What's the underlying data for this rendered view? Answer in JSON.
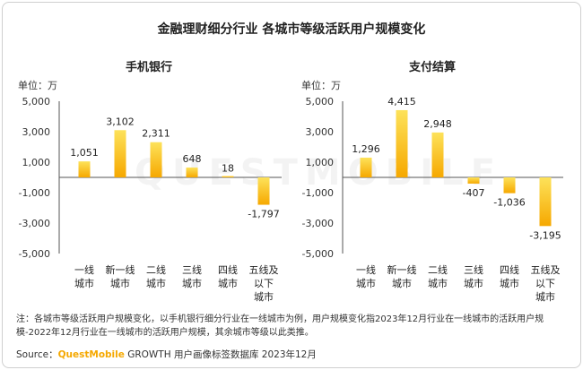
{
  "title": "金融理财细分行业 各城市等级活跃用户规模变化",
  "watermark": "QUESTMOBILE",
  "colors": {
    "bar_top": "#fde25a",
    "bar_bottom": "#f6a800",
    "axis": "#555555"
  },
  "chart_data": [
    {
      "type": "bar",
      "title": "手机银行",
      "unit": "单位：万",
      "categories": [
        [
          "一线",
          "城市"
        ],
        [
          "新一线",
          "城市"
        ],
        [
          "二线",
          "城市"
        ],
        [
          "三线",
          "城市"
        ],
        [
          "四线",
          "城市"
        ],
        [
          "五线及",
          "以下",
          "城市"
        ]
      ],
      "values": [
        1051,
        3102,
        2311,
        648,
        18,
        -1797
      ],
      "value_labels": [
        "1,051",
        "3,102",
        "2,311",
        "648",
        "18",
        "-1,797"
      ],
      "yticks": [
        5000,
        3000,
        1000,
        -1000,
        -3000,
        -5000
      ],
      "ytick_labels": [
        "5,000",
        "3,000",
        "1,000",
        "-1,000",
        "-3,000",
        "-5,000"
      ],
      "ylim": [
        -5000,
        5000
      ]
    },
    {
      "type": "bar",
      "title": "支付结算",
      "unit": "单位：万",
      "categories": [
        [
          "一线",
          "城市"
        ],
        [
          "新一线",
          "城市"
        ],
        [
          "二线",
          "城市"
        ],
        [
          "三线",
          "城市"
        ],
        [
          "四线",
          "城市"
        ],
        [
          "五线及",
          "以下",
          "城市"
        ]
      ],
      "values": [
        1296,
        4415,
        2948,
        -407,
        -1036,
        -3195
      ],
      "value_labels": [
        "1,296",
        "4,415",
        "2,948",
        "-407",
        "-1,036",
        "-3,195"
      ],
      "yticks": [
        5000,
        3000,
        1000,
        -1000,
        -3000,
        -5000
      ],
      "ytick_labels": [
        "5,000",
        "3,000",
        "1,000",
        "-1,000",
        "-3,000",
        "-5,000"
      ],
      "ylim": [
        -5000,
        5000
      ]
    }
  ],
  "note": "注：各城市等级活跃用户规模变化，以手机银行细分行业在一线城市为例，用户规模变化指2023年12月行业在一线城市的活跃用户规模-2022年12月行业在一线城市的活跃用户规模，其余城市等级以此类推。",
  "source": {
    "prefix": "Source：",
    "brand": "QuestMobile",
    "rest": " GROWTH 用户画像标签数据库 2023年12月"
  }
}
